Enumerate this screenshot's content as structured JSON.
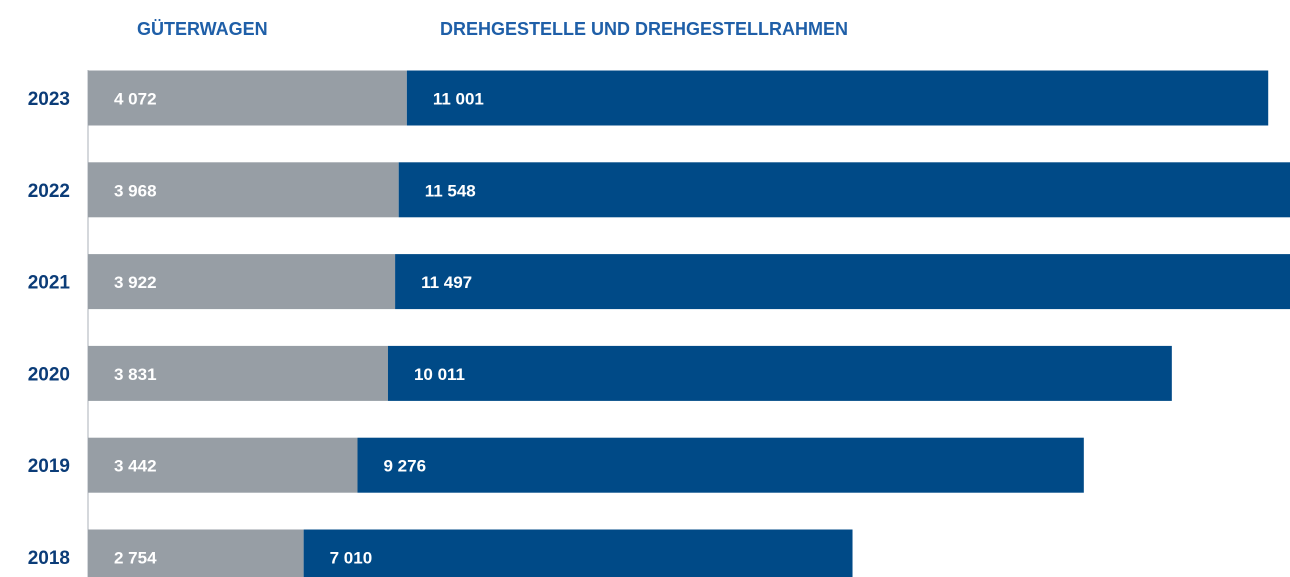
{
  "chart_data": {
    "type": "stacked-bar-horizontal",
    "categories": [
      "2023",
      "2022",
      "2021",
      "2020",
      "2019",
      "2018"
    ],
    "series": [
      {
        "name": "GÜTERWAGEN",
        "color": "#979ea5",
        "values": [
          4072,
          3968,
          3922,
          3831,
          3442,
          2754
        ],
        "value_labels": [
          "4 072",
          "3 968",
          "3 922",
          "3 831",
          "3 442",
          "2 754"
        ]
      },
      {
        "name": "DREHGESTELLE UND DREHGESTELLRAHMEN",
        "color": "#004a87",
        "values": [
          11001,
          11548,
          11497,
          10011,
          9276,
          7010
        ],
        "value_labels": [
          "11 001",
          "11 548",
          "11 497",
          "10 011",
          "9 276",
          "7 010"
        ]
      }
    ]
  }
}
